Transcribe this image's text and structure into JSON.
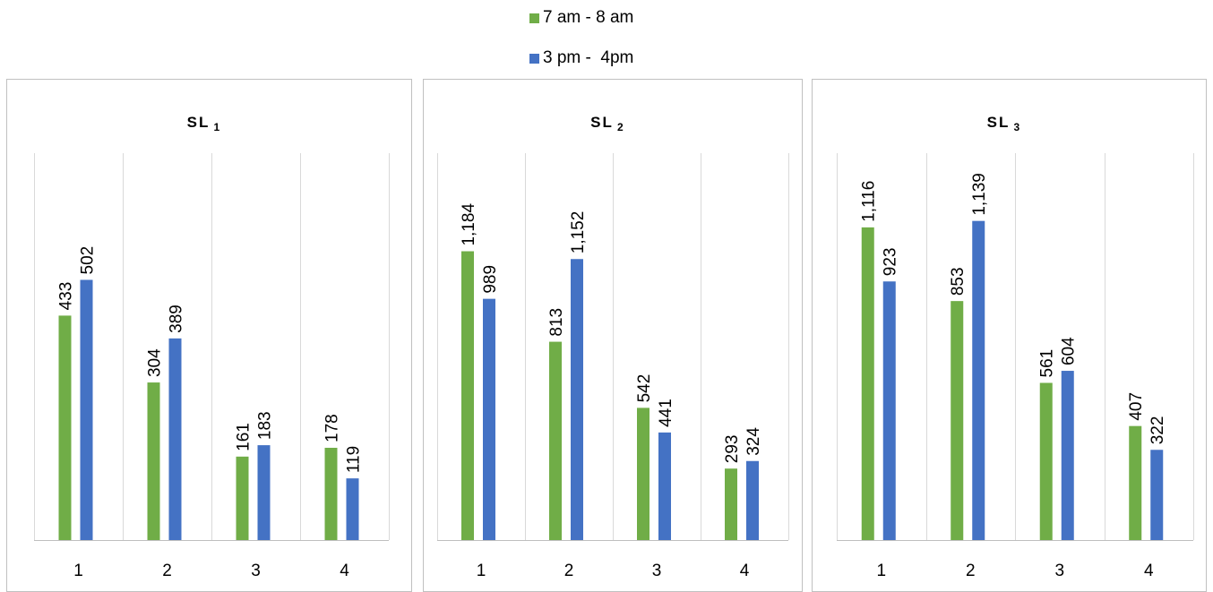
{
  "legend": [
    {
      "label": "7 am - 8 am",
      "color": "#70ad47"
    },
    {
      "label": "3 pm -  4pm",
      "color": "#4472c4"
    }
  ],
  "chart_data": [
    {
      "type": "bar",
      "title": "SL",
      "title_subscript": "1",
      "categories": [
        "1",
        "2",
        "3",
        "4"
      ],
      "series": [
        {
          "name": "7 am - 8 am",
          "values": [
            433,
            304,
            161,
            178
          ],
          "labels": [
            "433",
            "304",
            "161",
            "178"
          ]
        },
        {
          "name": "3 pm -  4pm",
          "values": [
            502,
            389,
            183,
            119
          ],
          "labels": [
            "502",
            "389",
            "183",
            "119"
          ]
        }
      ],
      "ylim": [
        0,
        800
      ],
      "grid": "vertical",
      "legend_position": "top"
    },
    {
      "type": "bar",
      "title": "SL",
      "title_subscript": "2",
      "categories": [
        "1",
        "2",
        "3",
        "4"
      ],
      "series": [
        {
          "name": "7 am - 8 am",
          "values": [
            1184,
            813,
            542,
            293
          ],
          "labels": [
            "1,184",
            "813",
            "542",
            "293"
          ]
        },
        {
          "name": "3 pm -  4pm",
          "values": [
            989,
            1152,
            441,
            324
          ],
          "labels": [
            "989",
            "1,152",
            "441",
            "324"
          ]
        }
      ],
      "ylim": [
        0,
        1700
      ],
      "grid": "vertical",
      "legend_position": "top"
    },
    {
      "type": "bar",
      "title": "SL",
      "title_subscript": "3",
      "categories": [
        "1",
        "2",
        "3",
        "4"
      ],
      "series": [
        {
          "name": "7 am - 8 am",
          "values": [
            1116,
            853,
            561,
            407
          ],
          "labels": [
            "1,116",
            "853",
            "561",
            "407"
          ]
        },
        {
          "name": "3 pm -  4pm",
          "values": [
            923,
            1139,
            604,
            322
          ],
          "labels": [
            "923",
            "1,139",
            "604",
            "322"
          ]
        }
      ],
      "ylim": [
        0,
        1480
      ],
      "grid": "vertical",
      "legend_position": "top"
    }
  ]
}
